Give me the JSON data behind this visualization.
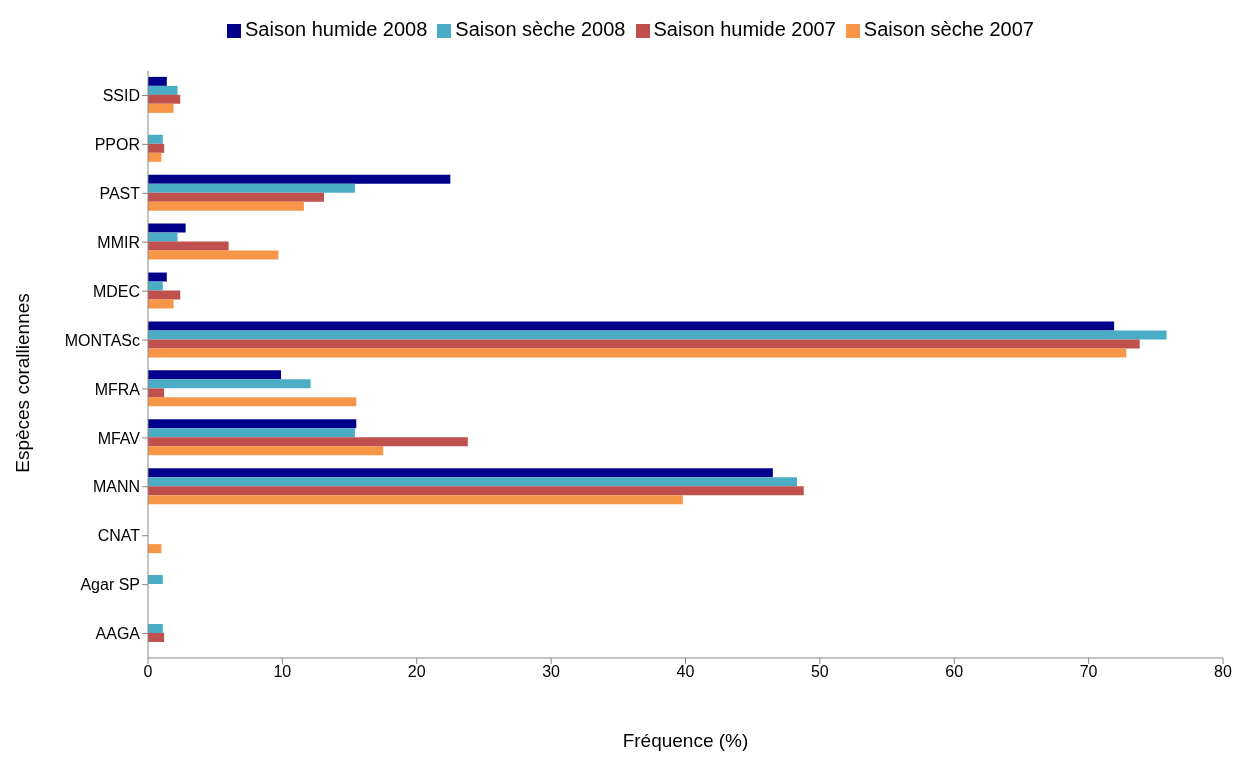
{
  "chart_data": {
    "type": "bar",
    "orientation": "horizontal",
    "xlabel": "Fréquence (%)",
    "ylabel": "Espèces coralliennes",
    "categories": [
      "SSID",
      "PPOR",
      "PAST",
      "MMIR",
      "MDEC",
      "MONTASc",
      "MFRA",
      "MFAV",
      "MANN",
      "CNAT",
      "Agar SP",
      "AAGA"
    ],
    "xlim": [
      0,
      80
    ],
    "xticks": [
      0,
      10,
      20,
      30,
      40,
      50,
      60,
      70,
      80
    ],
    "legend": "top",
    "series": [
      {
        "name": "Saison humide 2008",
        "color": "#00008b",
        "values": [
          1.4,
          null,
          22.5,
          2.8,
          1.4,
          71.9,
          9.9,
          15.5,
          46.5,
          null,
          null,
          null
        ]
      },
      {
        "name": "Saison sèche 2008",
        "color": "#4bacc6",
        "values": [
          2.2,
          1.1,
          15.4,
          2.2,
          1.1,
          75.8,
          12.1,
          15.4,
          48.3,
          null,
          1.1,
          1.1
        ]
      },
      {
        "name": "Saison humide 2007",
        "color": "#c0504d",
        "values": [
          2.4,
          1.2,
          13.1,
          6.0,
          2.4,
          73.8,
          1.2,
          23.8,
          48.8,
          null,
          null,
          1.2
        ]
      },
      {
        "name": "Saison sèche 2007",
        "color": "#f79646",
        "values": [
          1.9,
          1.0,
          11.6,
          9.7,
          1.9,
          72.8,
          15.5,
          17.5,
          39.8,
          1.0,
          null,
          null
        ]
      }
    ]
  }
}
